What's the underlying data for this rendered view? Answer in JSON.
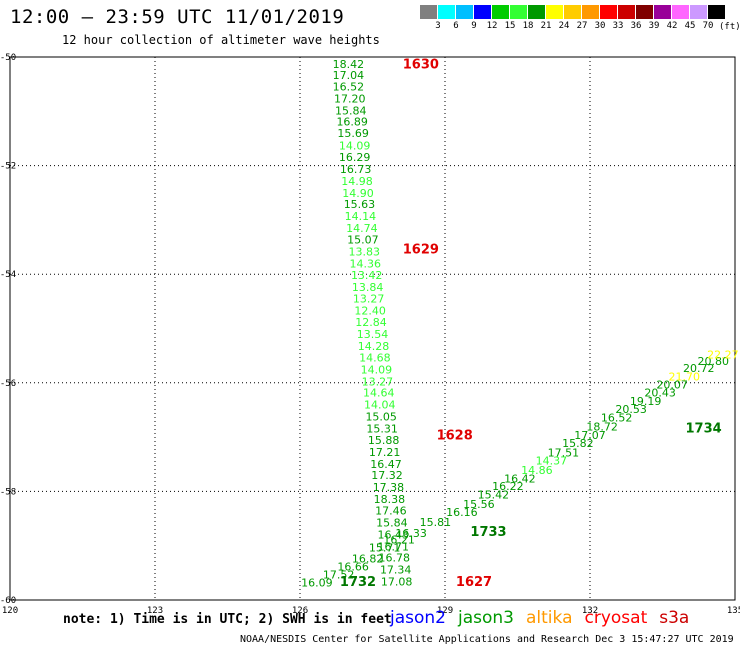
{
  "title": "12:00 – 23:59 UTC 11/01/2019",
  "subtitle": "12 hour collection of altimeter wave heights",
  "color_scale": {
    "labels": [
      "3",
      "6",
      "9",
      "12",
      "15",
      "18",
      "21",
      "24",
      "27",
      "30",
      "33",
      "36",
      "39",
      "42",
      "45",
      "70"
    ],
    "colors": [
      "#808080",
      "#00ffff",
      "#00bfff",
      "#0000ff",
      "#00cc00",
      "#33ff33",
      "#009900",
      "#ffff00",
      "#ffcc00",
      "#ff9900",
      "#ff0000",
      "#cc0000",
      "#800000",
      "#990099",
      "#ff66ff",
      "#cc99ff",
      "#000000"
    ],
    "unit": "(ft)"
  },
  "note": "note: 1) Time is in UTC; 2) SWH is in feet",
  "satellites": [
    {
      "name": "jason2",
      "color": "#0000ff"
    },
    {
      "name": "jason3",
      "color": "#009900"
    },
    {
      "name": "altika",
      "color": "#ff9900"
    },
    {
      "name": "cryosat",
      "color": "#ff0000"
    },
    {
      "name": "s3a",
      "color": "#cc0000"
    }
  ],
  "credit": "NOAA/NESDIS Center for Satellite Applications and Research   Dec  3 15:47:27 UTC 2019",
  "chart_data": {
    "type": "scatter",
    "title": "12:00 – 23:59 UTC 11/01/2019",
    "subtitle": "12 hour collection of altimeter wave heights",
    "xlabel": "",
    "ylabel": "",
    "xlim": [
      120,
      135
    ],
    "ylim": [
      -60,
      -50
    ],
    "x_ticks": [
      "120",
      "123",
      "126",
      "129",
      "132",
      "135"
    ],
    "y_ticks": [
      "-50",
      "-52",
      "-54",
      "-56",
      "-58",
      "-60"
    ],
    "grid": true,
    "tracks": [
      {
        "name": "pass 1 (north-south)",
        "points": [
          {
            "lon": 127.0,
            "lat": -50.15,
            "swh": "18.42",
            "color": "#009900"
          },
          {
            "lon": 127.0,
            "lat": -50.35,
            "swh": "17.04",
            "color": "#009900"
          },
          {
            "lon": 127.0,
            "lat": -50.56,
            "swh": "16.52",
            "color": "#009900"
          },
          {
            "lon": 127.03,
            "lat": -50.78,
            "swh": "17.20",
            "color": "#009900"
          },
          {
            "lon": 127.05,
            "lat": -51.0,
            "swh": "15.84",
            "color": "#009900"
          },
          {
            "lon": 127.08,
            "lat": -51.21,
            "swh": "16.89",
            "color": "#009900"
          },
          {
            "lon": 127.1,
            "lat": -51.42,
            "swh": "15.69",
            "color": "#009900"
          },
          {
            "lon": 127.13,
            "lat": -51.65,
            "swh": "14.09",
            "color": "#33ff33"
          },
          {
            "lon": 127.13,
            "lat": -51.86,
            "swh": "16.29",
            "color": "#009900"
          },
          {
            "lon": 127.15,
            "lat": -52.08,
            "swh": "16.73",
            "color": "#009900"
          },
          {
            "lon": 127.18,
            "lat": -52.3,
            "swh": "14.98",
            "color": "#33ff33"
          },
          {
            "lon": 127.2,
            "lat": -52.52,
            "swh": "14.90",
            "color": "#33ff33"
          },
          {
            "lon": 127.23,
            "lat": -52.73,
            "swh": "15.63",
            "color": "#009900"
          },
          {
            "lon": 127.25,
            "lat": -52.95,
            "swh": "14.14",
            "color": "#33ff33"
          },
          {
            "lon": 127.28,
            "lat": -53.17,
            "swh": "14.74",
            "color": "#33ff33"
          },
          {
            "lon": 127.3,
            "lat": -53.38,
            "swh": "15.07",
            "color": "#009900"
          },
          {
            "lon": 127.33,
            "lat": -53.6,
            "swh": "13.83",
            "color": "#33ff33"
          },
          {
            "lon": 127.35,
            "lat": -53.82,
            "swh": "14.36",
            "color": "#33ff33"
          },
          {
            "lon": 127.38,
            "lat": -54.03,
            "swh": "13.42",
            "color": "#33ff33"
          },
          {
            "lon": 127.4,
            "lat": -54.25,
            "swh": "13.84",
            "color": "#33ff33"
          },
          {
            "lon": 127.42,
            "lat": -54.47,
            "swh": "13.27",
            "color": "#33ff33"
          },
          {
            "lon": 127.45,
            "lat": -54.69,
            "swh": "12.40",
            "color": "#33ff33"
          },
          {
            "lon": 127.47,
            "lat": -54.9,
            "swh": "12.84",
            "color": "#33ff33"
          },
          {
            "lon": 127.5,
            "lat": -55.12,
            "swh": "13.54",
            "color": "#33ff33"
          },
          {
            "lon": 127.52,
            "lat": -55.34,
            "swh": "14.28",
            "color": "#33ff33"
          },
          {
            "lon": 127.55,
            "lat": -55.55,
            "swh": "14.68",
            "color": "#33ff33"
          },
          {
            "lon": 127.58,
            "lat": -55.77,
            "swh": "14.09",
            "color": "#33ff33"
          },
          {
            "lon": 127.6,
            "lat": -55.99,
            "swh": "13.27",
            "color": "#33ff33"
          },
          {
            "lon": 127.63,
            "lat": -56.2,
            "swh": "14.64",
            "color": "#33ff33"
          },
          {
            "lon": 127.65,
            "lat": -56.42,
            "swh": "14.04",
            "color": "#33ff33"
          },
          {
            "lon": 127.68,
            "lat": -56.64,
            "swh": "15.05",
            "color": "#009900"
          },
          {
            "lon": 127.7,
            "lat": -56.86,
            "swh": "15.31",
            "color": "#009900"
          },
          {
            "lon": 127.73,
            "lat": -57.07,
            "swh": "15.88",
            "color": "#009900"
          },
          {
            "lon": 127.75,
            "lat": -57.29,
            "swh": "17.21",
            "color": "#009900"
          },
          {
            "lon": 127.78,
            "lat": -57.51,
            "swh": "16.47",
            "color": "#009900"
          },
          {
            "lon": 127.8,
            "lat": -57.72,
            "swh": "17.32",
            "color": "#009900"
          },
          {
            "lon": 127.83,
            "lat": -57.94,
            "swh": "17.38",
            "color": "#009900"
          },
          {
            "lon": 127.85,
            "lat": -58.16,
            "swh": "18.38",
            "color": "#009900"
          },
          {
            "lon": 127.88,
            "lat": -58.37,
            "swh": "17.46",
            "color": "#009900"
          },
          {
            "lon": 127.9,
            "lat": -58.59,
            "swh": "15.84",
            "color": "#009900"
          },
          {
            "lon": 127.93,
            "lat": -58.81,
            "swh": "16.43",
            "color": "#009900"
          },
          {
            "lon": 127.93,
            "lat": -59.03,
            "swh": "16.71",
            "color": "#009900"
          },
          {
            "lon": 127.95,
            "lat": -59.24,
            "swh": "16.78",
            "color": "#009900"
          },
          {
            "lon": 127.98,
            "lat": -59.46,
            "swh": "17.34",
            "color": "#009900"
          },
          {
            "lon": 128.0,
            "lat": -59.68,
            "swh": "17.08",
            "color": "#009900"
          }
        ],
        "time_labels": [
          {
            "lon": 128.5,
            "lat": -50.15,
            "time": "1630"
          },
          {
            "lon": 128.5,
            "lat": -53.55,
            "time": "1629"
          },
          {
            "lon": 129.2,
            "lat": -56.98,
            "time": "1628"
          },
          {
            "lon": 129.6,
            "lat": -59.68,
            "time": "1627"
          }
        ]
      },
      {
        "name": "pass 2 (south-north)",
        "points": [
          {
            "lon": 126.35,
            "lat": -59.7,
            "swh": "16.09",
            "color": "#009900"
          },
          {
            "lon": 126.8,
            "lat": -59.55,
            "swh": "17.52",
            "color": "#009900"
          },
          {
            "lon": 127.1,
            "lat": -59.4,
            "swh": "16.66",
            "color": "#009900"
          },
          {
            "lon": 127.4,
            "lat": -59.25,
            "swh": "16.82",
            "color": "#009900"
          },
          {
            "lon": 127.75,
            "lat": -59.05,
            "swh": "15.71",
            "color": "#009900"
          },
          {
            "lon": 128.05,
            "lat": -58.9,
            "swh": "16.21",
            "color": "#009900"
          },
          {
            "lon": 128.3,
            "lat": -58.78,
            "swh": "16.33",
            "color": "#009900"
          },
          {
            "lon": 128.8,
            "lat": -58.58,
            "swh": "15.81",
            "color": "#009900"
          },
          {
            "lon": 129.35,
            "lat": -58.4,
            "swh": "16.16",
            "color": "#009900"
          },
          {
            "lon": 129.7,
            "lat": -58.25,
            "swh": "15.56",
            "color": "#009900"
          },
          {
            "lon": 130.0,
            "lat": -58.08,
            "swh": "15.42",
            "color": "#009900"
          },
          {
            "lon": 130.3,
            "lat": -57.92,
            "swh": "16.22",
            "color": "#009900"
          },
          {
            "lon": 130.55,
            "lat": -57.78,
            "swh": "16.42",
            "color": "#009900"
          },
          {
            "lon": 130.9,
            "lat": -57.62,
            "swh": "14.86",
            "color": "#33ff33"
          },
          {
            "lon": 131.2,
            "lat": -57.45,
            "swh": "14.37",
            "color": "#33ff33"
          },
          {
            "lon": 131.45,
            "lat": -57.3,
            "swh": "17.51",
            "color": "#009900"
          },
          {
            "lon": 131.75,
            "lat": -57.13,
            "swh": "15.82",
            "color": "#009900"
          },
          {
            "lon": 132.0,
            "lat": -56.98,
            "swh": "17.07",
            "color": "#009900"
          },
          {
            "lon": 132.25,
            "lat": -56.82,
            "swh": "18.72",
            "color": "#009900"
          },
          {
            "lon": 132.55,
            "lat": -56.66,
            "swh": "16.52",
            "color": "#009900"
          },
          {
            "lon": 132.85,
            "lat": -56.5,
            "swh": "20.53",
            "color": "#009900"
          },
          {
            "lon": 133.15,
            "lat": -56.35,
            "swh": "19.19",
            "color": "#009900"
          },
          {
            "lon": 133.45,
            "lat": -56.2,
            "swh": "20.43",
            "color": "#009900"
          },
          {
            "lon": 133.7,
            "lat": -56.05,
            "swh": "20.07",
            "color": "#009900"
          },
          {
            "lon": 133.95,
            "lat": -55.9,
            "swh": "21.70",
            "color": "#ffff00"
          },
          {
            "lon": 134.25,
            "lat": -55.75,
            "swh": "20.72",
            "color": "#009900"
          },
          {
            "lon": 134.55,
            "lat": -55.62,
            "swh": "20.80",
            "color": "#009900"
          },
          {
            "lon": 134.75,
            "lat": -55.5,
            "swh": "22.27",
            "color": "#ffff00"
          }
        ],
        "time_labels": [
          {
            "lon": 127.2,
            "lat": -59.68,
            "time": "1732"
          },
          {
            "lon": 129.9,
            "lat": -58.76,
            "time": "1733"
          },
          {
            "lon": 134.35,
            "lat": -56.85,
            "time": "1734"
          }
        ]
      }
    ]
  }
}
